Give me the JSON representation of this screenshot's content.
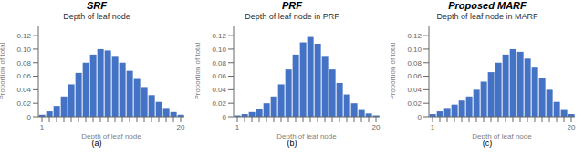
{
  "chart_data": [
    {
      "type": "bar",
      "title": "SRF",
      "subtitle": "Depth of leaf node",
      "xlabel": "Depth of leaf node",
      "ylabel": "Proportion of total",
      "categories": [
        "1",
        null,
        null,
        null,
        null,
        null,
        null,
        null,
        null,
        null,
        null,
        null,
        null,
        null,
        null,
        null,
        null,
        null,
        null,
        "20"
      ],
      "values": [
        0.003,
        0.008,
        0.016,
        0.03,
        0.048,
        0.065,
        0.08,
        0.092,
        0.1,
        0.098,
        0.09,
        0.08,
        0.068,
        0.056,
        0.044,
        0.032,
        0.022,
        0.013,
        0.007,
        0.003
      ],
      "color": "#4472C4",
      "ylim": [
        0,
        0.135
      ],
      "yticks": [
        0,
        0.02,
        0.04,
        0.06,
        0.08,
        {
          "value": 0.1,
          "label": "0.10"
        },
        0.12
      ],
      "grid": false,
      "annotations": [
        "(a)"
      ]
    },
    {
      "type": "bar",
      "title": "PRF",
      "subtitle": "Depth of leaf node in PRF",
      "xlabel": "Depth of leaf node",
      "ylabel": "Proportion of total",
      "categories": [
        "1",
        null,
        null,
        null,
        null,
        null,
        null,
        null,
        null,
        null,
        null,
        null,
        null,
        null,
        null,
        null,
        null,
        null,
        null,
        "20"
      ],
      "values": [
        0.002,
        0.004,
        0.007,
        0.012,
        0.02,
        0.03,
        0.048,
        0.07,
        0.092,
        0.11,
        0.118,
        0.108,
        0.09,
        0.07,
        0.05,
        0.033,
        0.02,
        0.01,
        0.005,
        0.002
      ],
      "color": "#4472C4",
      "ylim": [
        0,
        0.135
      ],
      "yticks": [
        0,
        0.02,
        0.04,
        0.06,
        0.08,
        {
          "value": 0.1,
          "label": "0.10"
        },
        0.12
      ],
      "grid": false,
      "annotations": [
        "(b)"
      ]
    },
    {
      "type": "bar",
      "title": "Proposed MARF",
      "subtitle": "Depth of leaf node in MARF",
      "xlabel": "Depth of leaf node",
      "ylabel": "Proportion of total",
      "categories": [
        "1",
        null,
        null,
        null,
        null,
        null,
        null,
        null,
        null,
        null,
        null,
        null,
        null,
        null,
        null,
        null,
        null,
        null,
        null,
        "20"
      ],
      "values": [
        0.004,
        0.008,
        0.013,
        0.018,
        0.024,
        0.03,
        0.04,
        0.052,
        0.066,
        0.08,
        0.092,
        0.1,
        0.096,
        0.086,
        0.074,
        0.058,
        0.04,
        0.022,
        0.01,
        0.004
      ],
      "color": "#4472C4",
      "ylim": [
        0,
        0.135
      ],
      "yticks": [
        0,
        0.02,
        0.04,
        0.06,
        0.08,
        {
          "value": 0.1,
          "label": "0.10"
        },
        0.12
      ],
      "grid": false,
      "annotations": [
        "(c)"
      ]
    }
  ]
}
